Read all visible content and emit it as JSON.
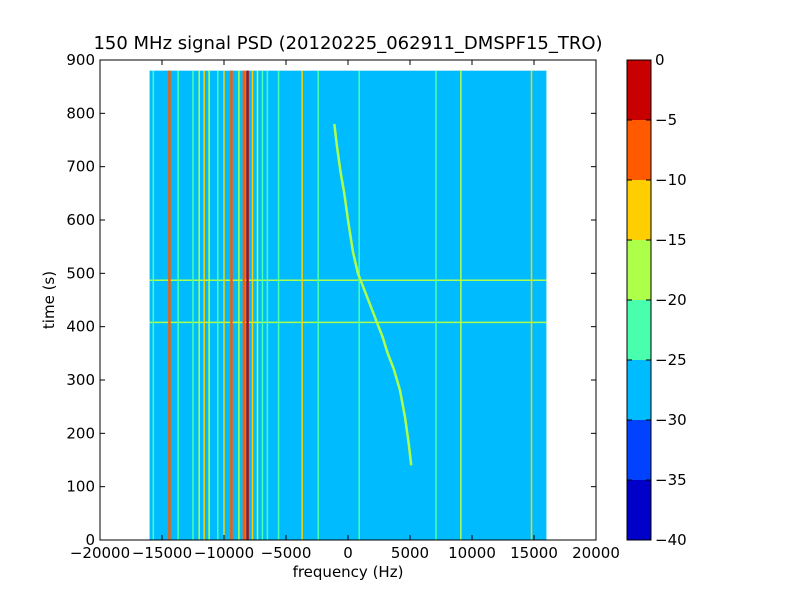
{
  "chart_data": {
    "type": "heatmap",
    "title": "150 MHz signal PSD (20120225_062911_DMSPF15_TRO)",
    "xlabel": "frequency (Hz)",
    "ylabel": "time (s)",
    "xlim": [
      -20000,
      20000
    ],
    "ylim": [
      0,
      900
    ],
    "x_ticks": [
      -20000,
      -15000,
      -10000,
      -5000,
      0,
      5000,
      10000,
      15000,
      20000
    ],
    "y_ticks": [
      0,
      100,
      200,
      300,
      400,
      500,
      600,
      700,
      800,
      900
    ],
    "data_extent": {
      "x": [
        -16000,
        16000
      ],
      "y": [
        0,
        880
      ]
    },
    "background_level_db": -27.5,
    "colorbar": {
      "levels": [
        -40,
        -35,
        -30,
        -25,
        -20,
        -15,
        -10,
        -5,
        0
      ],
      "colors": [
        "#0000c8",
        "#0042ff",
        "#00bcff",
        "#49ffad",
        "#adff49",
        "#ffce00",
        "#ff5a00",
        "#c80000"
      ]
    },
    "vertical_lines": [
      {
        "x": -15700,
        "level_db": -22
      },
      {
        "x": -14400,
        "level_db": -8
      },
      {
        "x": -13700,
        "level_db": -22
      },
      {
        "x": -12500,
        "level_db": -22
      },
      {
        "x": -12000,
        "level_db": -18
      },
      {
        "x": -11600,
        "level_db": -12
      },
      {
        "x": -11200,
        "level_db": -18
      },
      {
        "x": -10500,
        "level_db": -22
      },
      {
        "x": -10000,
        "level_db": -12
      },
      {
        "x": -9400,
        "level_db": -8
      },
      {
        "x": -8800,
        "level_db": -18
      },
      {
        "x": -8400,
        "level_db": -8
      },
      {
        "x": -8100,
        "level_db": -3
      },
      {
        "x": -7700,
        "level_db": -12
      },
      {
        "x": -7300,
        "level_db": -18
      },
      {
        "x": -6900,
        "level_db": -22
      },
      {
        "x": -6500,
        "level_db": -22
      },
      {
        "x": -5600,
        "level_db": -22
      },
      {
        "x": -3700,
        "level_db": -12
      },
      {
        "x": -2400,
        "level_db": -22
      },
      {
        "x": 900,
        "level_db": -22
      },
      {
        "x": 7100,
        "level_db": -22
      },
      {
        "x": 9100,
        "level_db": -18
      },
      {
        "x": 14800,
        "level_db": -12
      }
    ],
    "horizontal_lines": [
      {
        "y": 408,
        "level_db": -18
      },
      {
        "y": 487,
        "level_db": -18
      }
    ],
    "doppler_trace": {
      "level_db": -18,
      "x": [
        -1100,
        -900,
        -600,
        -300,
        0,
        400,
        800,
        1300,
        1800,
        2300,
        2800,
        3200,
        3700,
        4200,
        4600,
        4900,
        5100
      ],
      "y": [
        780,
        740,
        690,
        650,
        600,
        540,
        500,
        470,
        440,
        410,
        380,
        350,
        320,
        280,
        230,
        180,
        140
      ]
    }
  }
}
